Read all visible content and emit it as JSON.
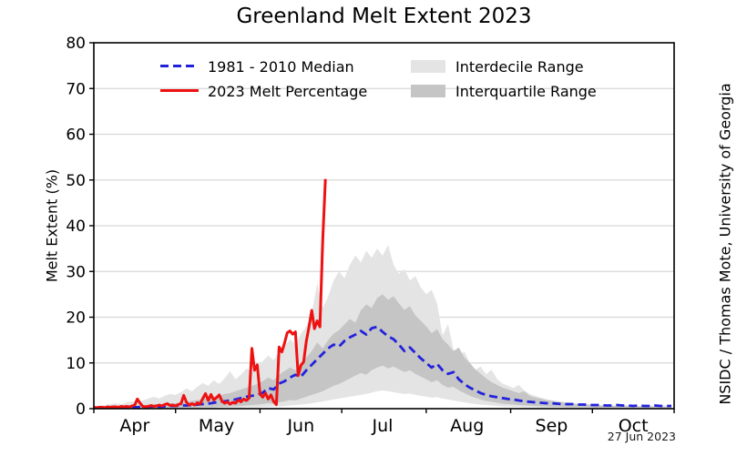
{
  "title": "Greenland Melt Extent 2023",
  "credit": "NSIDC / Thomas Mote, University of Georgia",
  "date_stamp": "27 Jun 2023",
  "axes": {
    "y_label": "Melt Extent (%)"
  },
  "legend": {
    "median_label": "1981 - 2010 Median",
    "melt_2023_label": "2023 Melt Percentage",
    "interdecile_label": "Interdecile Range",
    "interquartile_label": "Interquartile Range"
  },
  "chart_data": {
    "type": "line",
    "title": "Greenland Melt Extent 2023",
    "xlabel": "",
    "ylabel": "Melt Extent (%)",
    "ylim": [
      0,
      80
    ],
    "x_domain_days": [
      0,
      213
    ],
    "x_units": "days since Apr 1",
    "grid": "horizontal only",
    "legend_position": "upper left inside plot",
    "month_labels": [
      "Apr",
      "May",
      "Jun",
      "Jul",
      "Aug",
      "Sep",
      "Oct"
    ],
    "month_label_days": [
      15,
      45,
      76,
      106,
      137,
      168,
      198
    ],
    "month_tick_days": [
      0,
      30,
      61,
      91,
      122,
      153,
      183,
      213
    ],
    "y_ticks": [
      0,
      10,
      20,
      30,
      40,
      50,
      60,
      70,
      80
    ],
    "y_gridlines": [
      10,
      20,
      30,
      40,
      50,
      60,
      70
    ],
    "colors": {
      "melt_2023": "#ee1111",
      "median": "#2222dd",
      "interdecile": "#e4e4e4",
      "interquartile": "#c5c5c5",
      "grid": "#d8d8d8",
      "axis": "#000000"
    },
    "x_days": [
      0,
      2,
      4,
      6,
      8,
      10,
      12,
      14,
      16,
      18,
      20,
      22,
      24,
      26,
      28,
      30,
      32,
      34,
      36,
      38,
      40,
      42,
      44,
      46,
      48,
      50,
      52,
      54,
      56,
      58,
      60,
      62,
      64,
      66,
      68,
      70,
      72,
      74,
      76,
      78,
      80,
      82,
      84,
      86,
      88,
      90,
      92,
      94,
      96,
      98,
      100,
      102,
      104,
      106,
      108,
      110,
      112,
      114,
      116,
      118,
      120,
      122,
      124,
      126,
      128,
      130,
      132,
      134,
      136,
      138,
      140,
      142,
      144,
      146,
      148,
      150,
      152,
      154,
      156,
      158,
      160,
      162,
      164,
      166,
      168,
      170,
      172,
      174,
      176,
      178,
      180,
      182,
      184,
      186,
      188,
      190,
      192,
      194,
      196,
      198,
      200,
      202,
      204,
      206,
      208,
      210,
      212
    ],
    "median": [
      0.2,
      0.2,
      0.2,
      0.3,
      0.2,
      0.3,
      0.3,
      0.4,
      0.3,
      0.4,
      0.4,
      0.5,
      0.4,
      0.5,
      0.6,
      0.6,
      0.7,
      0.7,
      0.8,
      0.9,
      1.0,
      1.1,
      1.3,
      1.5,
      1.6,
      1.8,
      2.0,
      2.3,
      2.6,
      2.8,
      3.0,
      3.5,
      4.5,
      4.2,
      5.5,
      6.0,
      6.8,
      7.4,
      7.0,
      8.4,
      9.6,
      10.8,
      12.0,
      13.2,
      14.0,
      13.6,
      14.8,
      15.6,
      16.2,
      17.0,
      16.2,
      17.6,
      17.9,
      16.8,
      15.8,
      15.2,
      14.0,
      12.6,
      13.4,
      12.2,
      11.0,
      10.0,
      9.0,
      9.8,
      8.4,
      7.6,
      8.0,
      6.4,
      5.4,
      4.6,
      4.0,
      3.4,
      3.0,
      2.7,
      2.5,
      2.3,
      2.1,
      2.0,
      1.8,
      1.6,
      1.5,
      1.4,
      1.3,
      1.2,
      1.2,
      1.1,
      1.0,
      1.0,
      1.0,
      0.9,
      0.9,
      0.8,
      0.8,
      0.8,
      0.7,
      0.7,
      0.8,
      0.7,
      0.7,
      0.6,
      0.7,
      0.6,
      0.6,
      0.7,
      0.6,
      0.6,
      0.6
    ],
    "interdecile_upper": [
      0.6,
      0.7,
      0.8,
      1.0,
      1.2,
      1.0,
      1.4,
      1.6,
      1.4,
      1.8,
      2.2,
      2.6,
      2.2,
      2.8,
      3.2,
      3.0,
      3.6,
      4.4,
      3.8,
      4.8,
      5.6,
      5.0,
      6.2,
      5.4,
      6.6,
      8.2,
      6.4,
      7.4,
      8.8,
      8.0,
      9.2,
      10.4,
      11.6,
      10.6,
      12.4,
      13.6,
      15.2,
      14.0,
      16.4,
      18.0,
      21.0,
      27.5,
      22.0,
      24.5,
      28.0,
      30.0,
      28.5,
      31.5,
      33.5,
      32.0,
      34.5,
      33.0,
      35.0,
      33.5,
      35.8,
      31.5,
      29.5,
      30.5,
      28.0,
      29.0,
      26.5,
      25.0,
      26.0,
      23.0,
      16.0,
      18.5,
      13.0,
      11.5,
      12.5,
      10.0,
      8.5,
      9.2,
      7.5,
      8.5,
      6.5,
      5.5,
      5.0,
      4.5,
      5.2,
      4.0,
      3.2,
      2.8,
      2.4,
      2.1,
      1.9,
      1.7,
      1.5,
      1.4,
      1.2,
      1.1,
      1.0,
      1.0,
      0.9,
      0.8,
      0.8,
      0.7,
      0.7,
      0.7,
      0.8,
      0.7,
      0.6,
      0.6,
      0.7,
      0.6,
      0.6,
      0.7,
      0.6
    ],
    "interdecile_lower": [
      0,
      0,
      0,
      0,
      0,
      0,
      0,
      0,
      0,
      0,
      0,
      0,
      0,
      0,
      0,
      0,
      0,
      0,
      0.1,
      0.1,
      0.1,
      0.1,
      0.1,
      0.1,
      0.2,
      0.2,
      0.2,
      0.2,
      0.3,
      0.3,
      0.3,
      0.4,
      0.4,
      0.5,
      0.5,
      0.6,
      0.7,
      0.8,
      0.9,
      1.0,
      1.2,
      1.4,
      1.6,
      1.8,
      2.0,
      2.2,
      2.4,
      2.6,
      2.8,
      3.0,
      3.2,
      3.5,
      3.8,
      4.0,
      3.8,
      3.6,
      3.4,
      3.2,
      3.3,
      3.0,
      2.8,
      2.6,
      2.4,
      2.5,
      2.2,
      2.0,
      1.8,
      1.6,
      1.4,
      1.2,
      1.0,
      0.9,
      0.8,
      0.7,
      0.6,
      0.5,
      0.5,
      0.4,
      0.4,
      0.3,
      0.3,
      0.3,
      0.2,
      0.2,
      0.2,
      0.2,
      0.1,
      0.1,
      0.1,
      0.1,
      0.1,
      0.1,
      0.1,
      0.1,
      0,
      0,
      0,
      0,
      0,
      0,
      0,
      0,
      0,
      0,
      0,
      0,
      0
    ],
    "interquartile_upper": [
      0.4,
      0.4,
      0.5,
      0.5,
      0.6,
      0.6,
      0.7,
      0.7,
      0.8,
      0.8,
      0.9,
      1.0,
      1.0,
      1.1,
      1.2,
      1.2,
      1.4,
      1.5,
      1.7,
      1.9,
      2.1,
      2.4,
      2.6,
      2.9,
      3.2,
      3.4,
      3.8,
      4.2,
      4.6,
      5.0,
      5.4,
      6.0,
      6.8,
      6.2,
      7.4,
      8.2,
      9.0,
      8.4,
      10.0,
      11.2,
      12.6,
      14.5,
      13.2,
      15.0,
      16.4,
      17.2,
      18.4,
      19.6,
      18.8,
      21.5,
      22.8,
      22.0,
      24.2,
      25.0,
      23.8,
      24.6,
      23.0,
      21.6,
      22.4,
      20.4,
      19.2,
      18.0,
      16.5,
      17.4,
      15.2,
      14.0,
      12.6,
      13.4,
      11.2,
      10.0,
      8.6,
      7.6,
      6.6,
      5.8,
      5.2,
      4.6,
      4.2,
      3.8,
      3.4,
      3.8,
      2.8,
      2.4,
      2.2,
      1.9,
      1.7,
      1.5,
      1.4,
      1.2,
      1.1,
      1.0,
      0.9,
      0.9,
      0.8,
      0.7,
      0.7,
      0.6,
      0.6,
      0.6,
      0.5,
      0.6,
      0.5,
      0.5,
      0.5,
      0.4,
      0.5,
      0.4,
      0.4
    ],
    "interquartile_lower": [
      0.1,
      0.1,
      0.1,
      0.1,
      0.1,
      0.1,
      0.1,
      0.1,
      0.1,
      0.1,
      0.1,
      0.1,
      0.1,
      0.1,
      0.1,
      0.1,
      0.1,
      0.2,
      0.2,
      0.2,
      0.3,
      0.3,
      0.3,
      0.4,
      0.4,
      0.5,
      0.5,
      0.6,
      0.7,
      0.8,
      0.9,
      1.0,
      1.2,
      1.1,
      1.4,
      1.6,
      1.9,
      1.8,
      2.2,
      2.6,
      3.0,
      3.4,
      3.8,
      4.4,
      5.0,
      5.4,
      6.0,
      6.6,
      7.2,
      7.8,
      7.4,
      8.4,
      9.0,
      9.4,
      8.8,
      9.2,
      8.6,
      8.0,
      8.4,
      7.6,
      7.0,
      6.4,
      5.8,
      6.2,
      5.2,
      4.6,
      4.8,
      4.0,
      3.4,
      2.8,
      2.4,
      2.0,
      1.7,
      1.5,
      1.3,
      1.1,
      1.0,
      0.9,
      0.8,
      0.7,
      0.7,
      0.6,
      0.5,
      0.5,
      0.4,
      0.4,
      0.4,
      0.3,
      0.3,
      0.3,
      0.3,
      0.3,
      0.2,
      0.2,
      0.2,
      0.2,
      0.2,
      0.2,
      0.2,
      0.2,
      0.1,
      0.1,
      0.1,
      0.1,
      0.1,
      0.1,
      0.1
    ],
    "series_2023": {
      "name": "2023 Melt Percentage",
      "x_days": [
        0,
        1,
        2,
        3,
        4,
        5,
        6,
        7,
        8,
        9,
        10,
        11,
        12,
        13,
        14,
        15,
        16,
        17,
        18,
        19,
        20,
        21,
        22,
        23,
        24,
        25,
        26,
        27,
        28,
        29,
        30,
        31,
        32,
        33,
        34,
        35,
        36,
        37,
        38,
        39,
        40,
        41,
        42,
        43,
        44,
        45,
        46,
        47,
        48,
        49,
        50,
        51,
        52,
        53,
        54,
        55,
        56,
        57,
        58,
        59,
        60,
        61,
        62,
        63,
        64,
        65,
        66,
        67,
        68,
        69,
        70,
        71,
        72,
        73,
        74,
        75,
        76,
        77,
        78,
        79,
        80,
        81,
        82,
        83,
        84,
        85
      ],
      "values": [
        0.3,
        0.2,
        0.3,
        0.3,
        0.2,
        0.4,
        0.3,
        0.4,
        0.4,
        0.3,
        0.5,
        0.4,
        0.5,
        0.4,
        0.6,
        0.8,
        2.1,
        1.2,
        0.5,
        0.4,
        0.5,
        0.7,
        0.5,
        0.6,
        0.8,
        0.6,
        0.9,
        1.1,
        0.7,
        0.8,
        0.6,
        0.9,
        1.1,
        2.9,
        1.4,
        0.8,
        1.1,
        0.8,
        1.3,
        1.0,
        2.2,
        3.3,
        1.8,
        3.1,
        1.9,
        2.4,
        3.0,
        1.7,
        1.2,
        1.5,
        1.0,
        1.4,
        1.2,
        1.9,
        1.5,
        2.1,
        1.8,
        2.3,
        13.2,
        8.4,
        9.6,
        3.2,
        2.5,
        3.4,
        2.1,
        3.0,
        1.6,
        0.9,
        13.5,
        12.4,
        14.3,
        16.6,
        17.0,
        16.3,
        16.8,
        7.2,
        9.5,
        10.2,
        14.8,
        18.0,
        21.5,
        17.5,
        19.2,
        17.9,
        36.5,
        50.2
      ]
    }
  }
}
